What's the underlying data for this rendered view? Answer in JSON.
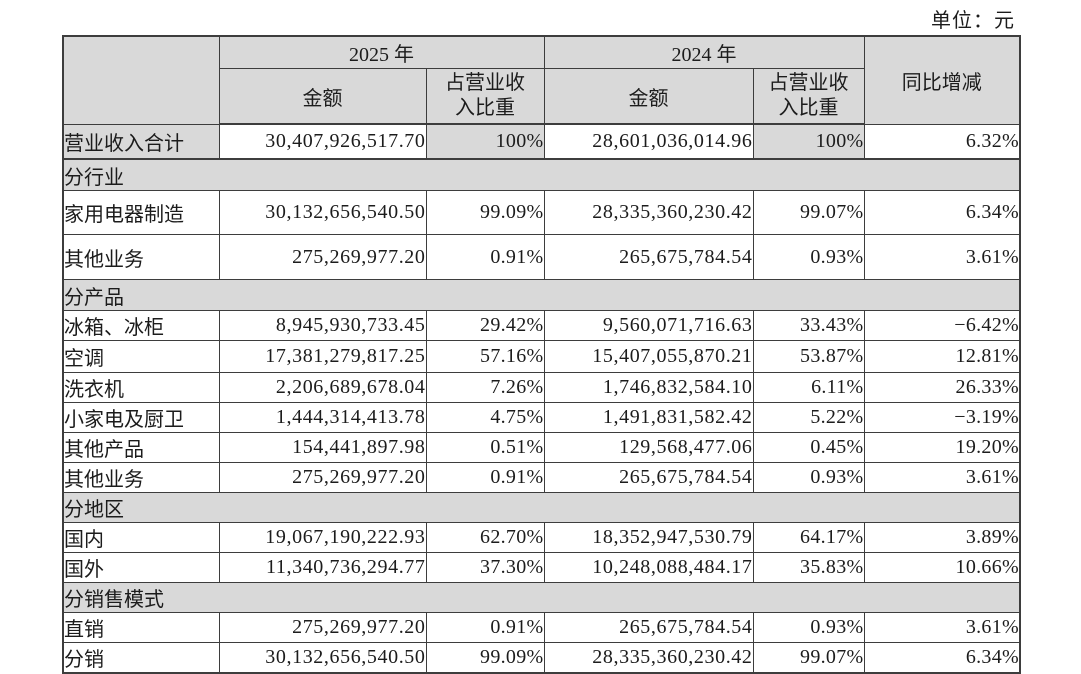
{
  "unit_label": "单位：元",
  "table": {
    "header": {
      "year_2025": "2025 年",
      "year_2024": "2024 年",
      "amount": "金额",
      "proportion": "占营业收\n入比重",
      "yoy": "同比增减"
    },
    "rows": [
      {
        "type": "total",
        "label": "营业收入合计",
        "a2025": "30,407,926,517.70",
        "p2025": "100%",
        "a2024": "28,601,036,014.96",
        "p2024": "100%",
        "yoy": "6.32%"
      },
      {
        "type": "section",
        "label": "分行业"
      },
      {
        "type": "data",
        "label": "家用电器制造",
        "a2025": "30,132,656,540.50",
        "p2025": "99.09%",
        "a2024": "28,335,360,230.42",
        "p2024": "99.07%",
        "yoy": "6.34%"
      },
      {
        "type": "data",
        "label": "其他业务",
        "a2025": "275,269,977.20",
        "p2025": "0.91%",
        "a2024": "265,675,784.54",
        "p2024": "0.93%",
        "yoy": "3.61%"
      },
      {
        "type": "section",
        "label": "分产品"
      },
      {
        "type": "data",
        "label": "冰箱、冰柜",
        "a2025": "8,945,930,733.45",
        "p2025": "29.42%",
        "a2024": "9,560,071,716.63",
        "p2024": "33.43%",
        "yoy": "−6.42%"
      },
      {
        "type": "data",
        "label": "空调",
        "a2025": "17,381,279,817.25",
        "p2025": "57.16%",
        "a2024": "15,407,055,870.21",
        "p2024": "53.87%",
        "yoy": "12.81%"
      },
      {
        "type": "data",
        "label": "洗衣机",
        "a2025": "2,206,689,678.04",
        "p2025": "7.26%",
        "a2024": "1,746,832,584.10",
        "p2024": "6.11%",
        "yoy": "26.33%"
      },
      {
        "type": "data",
        "label": "小家电及厨卫",
        "a2025": "1,444,314,413.78",
        "p2025": "4.75%",
        "a2024": "1,491,831,582.42",
        "p2024": "5.22%",
        "yoy": "−3.19%"
      },
      {
        "type": "data",
        "label": "其他产品",
        "a2025": "154,441,897.98",
        "p2025": "0.51%",
        "a2024": "129,568,477.06",
        "p2024": "0.45%",
        "yoy": "19.20%"
      },
      {
        "type": "data",
        "label": "其他业务",
        "a2025": "275,269,977.20",
        "p2025": "0.91%",
        "a2024": "265,675,784.54",
        "p2024": "0.93%",
        "yoy": "3.61%"
      },
      {
        "type": "section",
        "label": "分地区"
      },
      {
        "type": "data",
        "label": "国内",
        "a2025": "19,067,190,222.93",
        "p2025": "62.70%",
        "a2024": "18,352,947,530.79",
        "p2024": "64.17%",
        "yoy": "3.89%"
      },
      {
        "type": "data",
        "label": "国外",
        "a2025": "11,340,736,294.77",
        "p2025": "37.30%",
        "a2024": "10,248,088,484.17",
        "p2024": "35.83%",
        "yoy": "10.66%"
      },
      {
        "type": "section",
        "label": "分销售模式"
      },
      {
        "type": "data",
        "label": "直销",
        "a2025": "275,269,977.20",
        "p2025": "0.91%",
        "a2024": "265,675,784.54",
        "p2024": "0.93%",
        "yoy": "3.61%"
      },
      {
        "type": "data",
        "label": "分销",
        "a2025": "30,132,656,540.50",
        "p2025": "99.09%",
        "a2024": "28,335,360,230.42",
        "p2024": "99.07%",
        "yoy": "6.34%"
      }
    ]
  },
  "colors": {
    "header_fill": "#d9d9d9",
    "border": "#3d3d3d",
    "background": "#ffffff",
    "text": "#1c1c1c"
  }
}
